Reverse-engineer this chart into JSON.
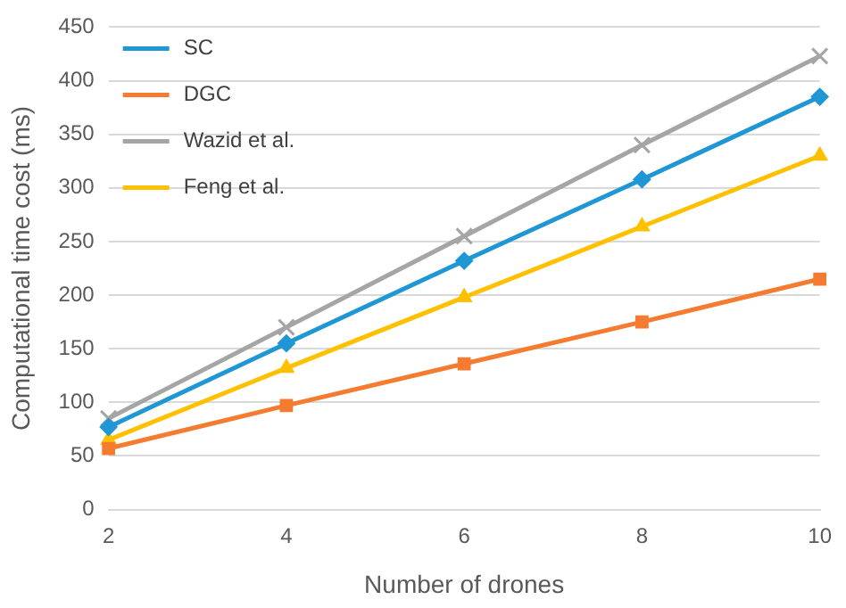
{
  "chart_data": {
    "type": "line",
    "xlabel": "Number of drones",
    "ylabel": "Computational time cost (ms)",
    "categories": [
      "2",
      "4",
      "6",
      "8",
      "10"
    ],
    "series": [
      {
        "name": "SC",
        "color": "#1f97d4",
        "marker": "diamond",
        "values": [
          77,
          155,
          232,
          308,
          385
        ]
      },
      {
        "name": "DGC",
        "color": "#f47b30",
        "marker": "square",
        "values": [
          57,
          97,
          136,
          175,
          215
        ]
      },
      {
        "name": "Wazid et al.",
        "color": "#a5a5a5",
        "marker": "cross",
        "values": [
          85,
          170,
          255,
          340,
          423
        ]
      },
      {
        "name": "Feng et al.",
        "color": "#ffc000",
        "marker": "triangle",
        "values": [
          65,
          132,
          198,
          264,
          330
        ]
      }
    ],
    "ylim": [
      0,
      450
    ],
    "yticks": [
      0,
      50,
      100,
      150,
      200,
      250,
      300,
      350,
      400,
      450
    ],
    "grid": "y",
    "legend": "top left"
  }
}
